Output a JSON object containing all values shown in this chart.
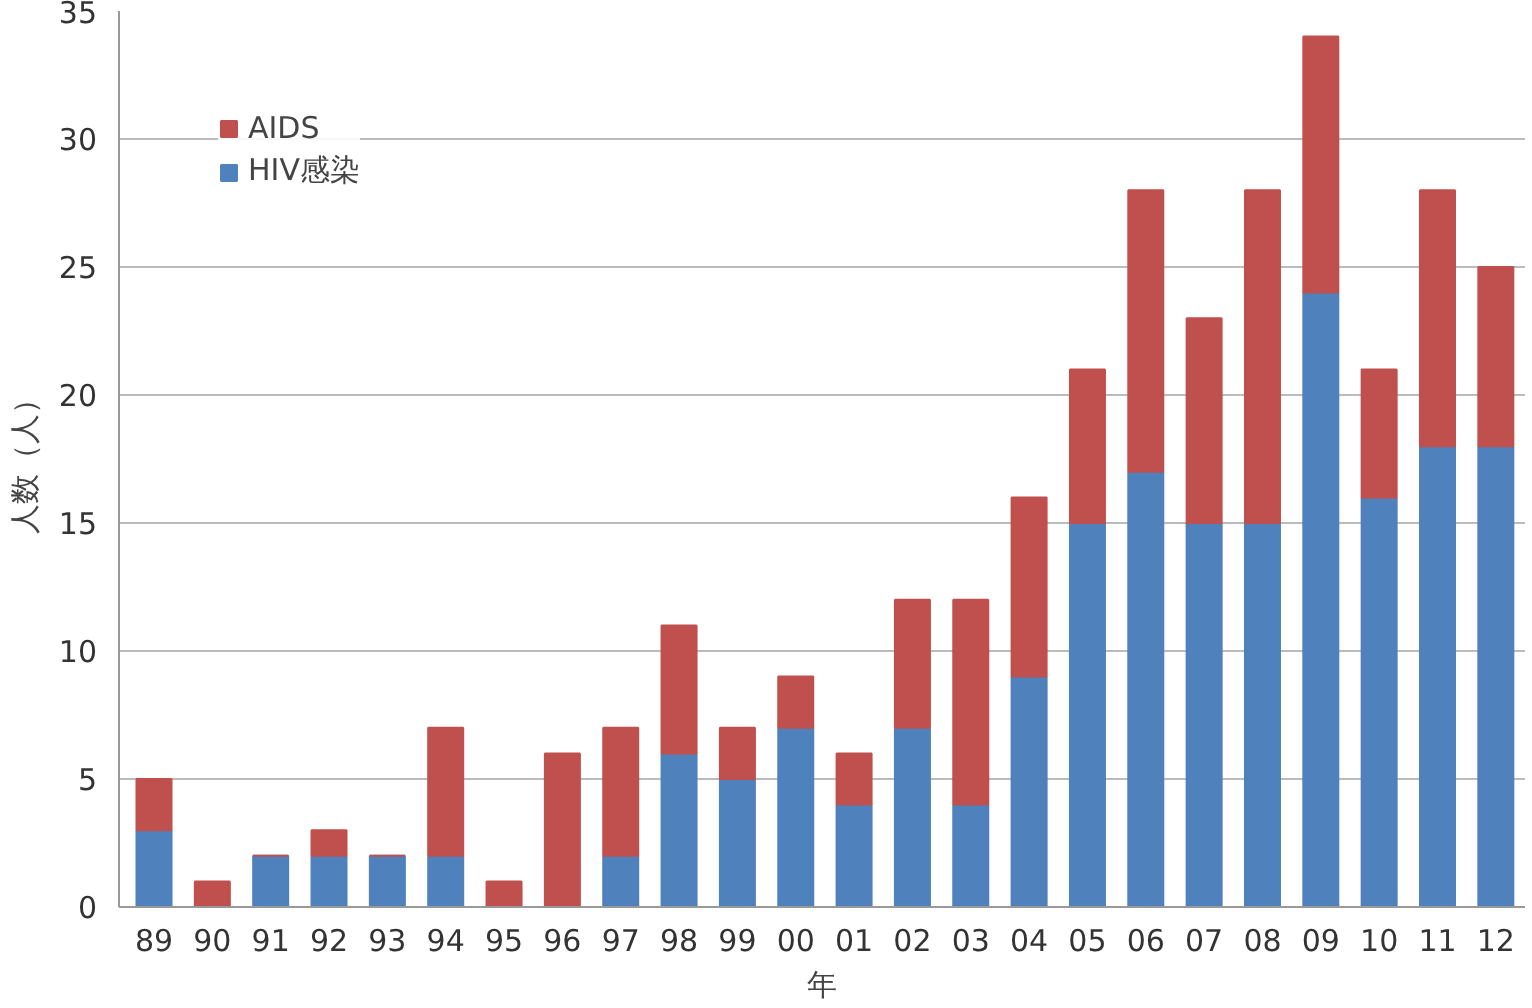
{
  "chart_data": {
    "type": "bar",
    "stacked": true,
    "xlabel": "年",
    "ylabel": "人数（人）",
    "categories": [
      "89",
      "90",
      "91",
      "92",
      "93",
      "94",
      "95",
      "96",
      "97",
      "98",
      "99",
      "00",
      "01",
      "02",
      "03",
      "04",
      "05",
      "06",
      "07",
      "08",
      "09",
      "10",
      "11",
      "12"
    ],
    "series": [
      {
        "name": "HIV感染",
        "color": "#4f81bd",
        "values": [
          3,
          0,
          2,
          2,
          2,
          2,
          0,
          0,
          2,
          6,
          5,
          7,
          4,
          7,
          4,
          9,
          15,
          17,
          15,
          15,
          24,
          16,
          18,
          18
        ]
      },
      {
        "name": "AIDS",
        "color": "#c0504d",
        "values": [
          2,
          1,
          0,
          1,
          0,
          5,
          1,
          6,
          5,
          5,
          2,
          2,
          2,
          5,
          8,
          7,
          6,
          11,
          8,
          13,
          10,
          5,
          10,
          7
        ]
      }
    ],
    "ylim": [
      0,
      35
    ],
    "yticks": [
      0,
      5,
      10,
      15,
      20,
      25,
      30,
      35
    ],
    "grid": "y",
    "legend": "top left"
  }
}
